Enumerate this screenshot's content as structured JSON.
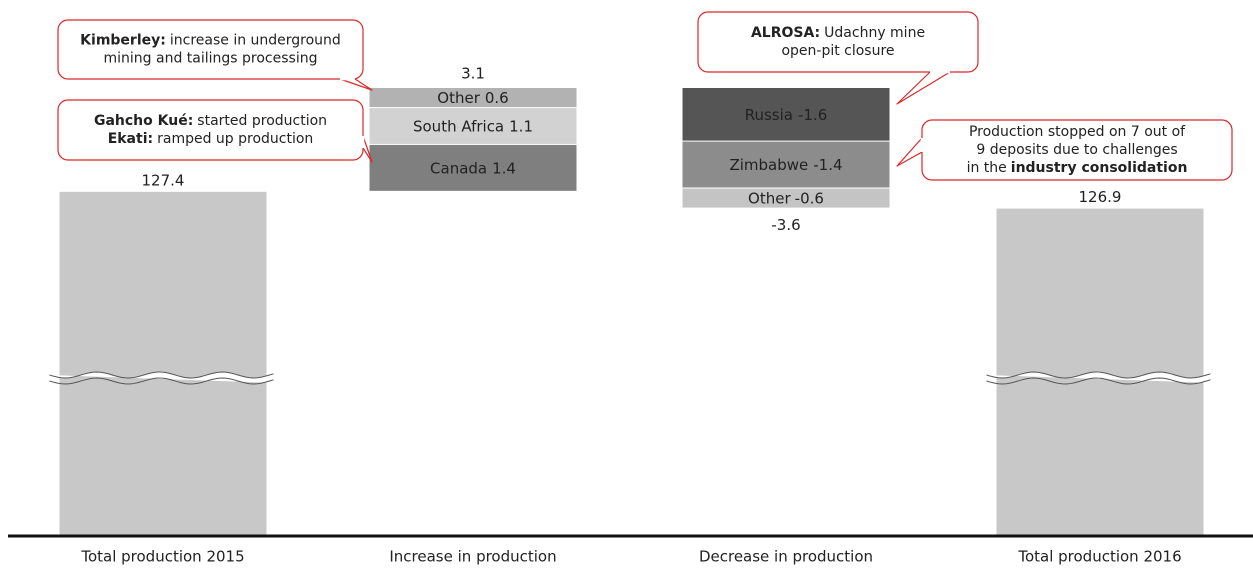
{
  "chart_data": {
    "type": "waterfall",
    "columns": [
      {
        "label": "Total production 2015",
        "kind": "total",
        "value": 127.4,
        "color": "#c8c8c8"
      },
      {
        "label": "Increase in production",
        "kind": "delta",
        "total": 3.1,
        "segments": [
          {
            "name": "Canada",
            "value": 1.4,
            "color": "#7f7f7f"
          },
          {
            "name": "South Africa",
            "value": 1.1,
            "color": "#d2d2d2"
          },
          {
            "name": "Other",
            "value": 0.6,
            "color": "#b2b2b2"
          }
        ]
      },
      {
        "label": "Decrease in production",
        "kind": "delta",
        "total": -3.6,
        "segments": [
          {
            "name": "Russia",
            "value": -1.6,
            "color": "#555555"
          },
          {
            "name": "Zimbabwe",
            "value": -1.4,
            "color": "#8c8c8c"
          },
          {
            "name": "Other",
            "value": -0.6,
            "color": "#c4c4c4"
          }
        ]
      },
      {
        "label": "Total production 2016",
        "kind": "total",
        "value": 126.9,
        "color": "#c8c8c8"
      }
    ],
    "axis_break": true,
    "annotations": [
      {
        "lines": [
          [
            {
              "text": "Kimberley:",
              "bold": true
            },
            {
              "text": "increase in underground"
            }
          ],
          [
            {
              "text": "mining and tailings processing"
            }
          ]
        ]
      },
      {
        "lines": [
          [
            {
              "text": "Gahcho Kué:",
              "bold": true
            },
            {
              "text": "started production"
            }
          ],
          [
            {
              "text": "Ekati:",
              "bold": true
            },
            {
              "text": "ramped up production"
            }
          ]
        ]
      },
      {
        "lines": [
          [
            {
              "text": "ALROSA:",
              "bold": true
            },
            {
              "text": "Udachny mine"
            }
          ],
          [
            {
              "text": "open-pit closure"
            }
          ]
        ]
      },
      {
        "lines": [
          [
            {
              "text": "Production stopped on 7 out of"
            }
          ],
          [
            {
              "text": "9 deposits due to challenges"
            }
          ],
          [
            {
              "text": "in the"
            },
            {
              "text": "industry consolidation",
              "bold": true
            }
          ]
        ]
      }
    ]
  }
}
